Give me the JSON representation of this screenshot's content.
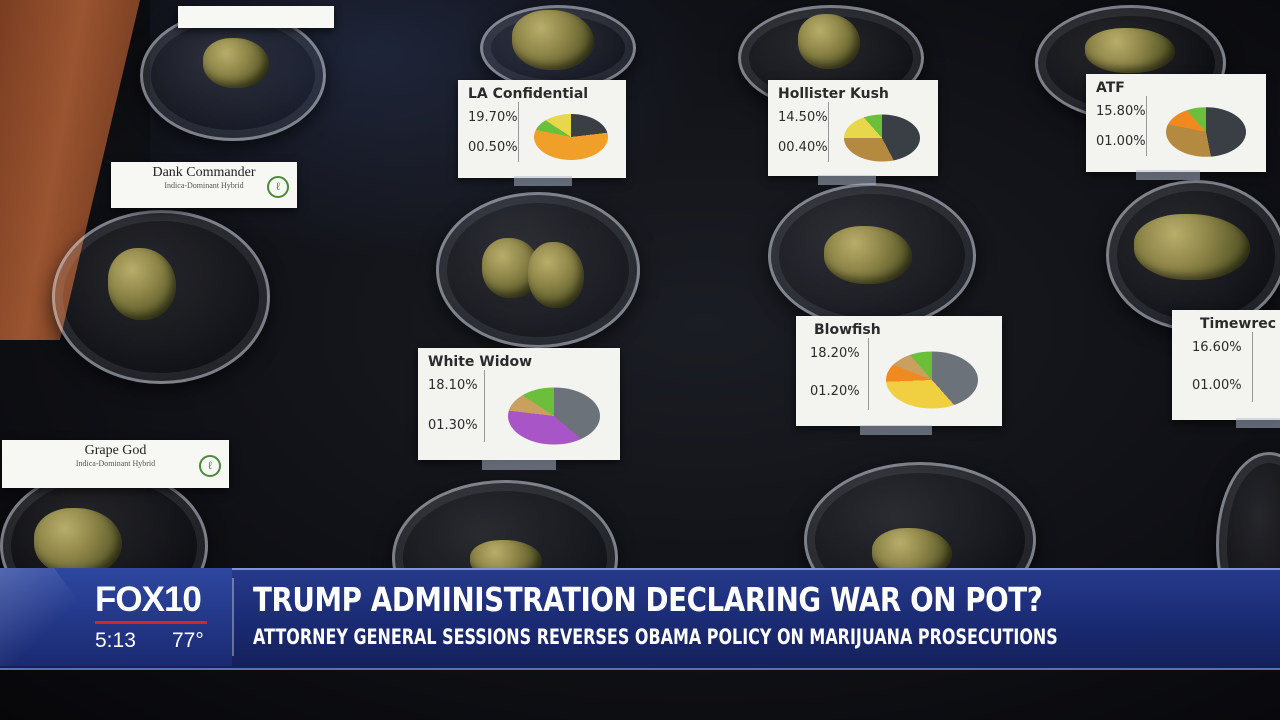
{
  "broadcast": {
    "station_logo": "FOX10",
    "time": "5:13",
    "temperature": "77°",
    "headline": "TRUMP ADMINISTRATION DECLARING WAR ON POT?",
    "subheadline": "ATTORNEY GENERAL SESSIONS REVERSES OBAMA POLICY ON MARIJUANA PROSECUTIONS",
    "colors": {
      "band": "#1c2d78",
      "accent": "#d8232a",
      "text": "#ffffff"
    }
  },
  "strain_cards": [
    {
      "name": "LA Confidential",
      "thc": "19.70%",
      "cbd": "00.50%"
    },
    {
      "name": "Hollister Kush",
      "thc": "14.50%",
      "cbd": "00.40%"
    },
    {
      "name": "ATF",
      "thc": "15.80%",
      "cbd": "01.00%"
    },
    {
      "name": "White Widow",
      "thc": "18.10%",
      "cbd": "01.30%"
    },
    {
      "name": "Blowfish",
      "thc": "18.20%",
      "cbd": "01.20%"
    },
    {
      "name": "Timewrec",
      "thc": "16.60%",
      "cbd": "01.00%"
    }
  ],
  "name_cards": [
    {
      "title": "Dank Commander",
      "subtitle": "Indica-Dominant Hybrid"
    },
    {
      "title": "Grape God",
      "subtitle": "Indica-Dominant Hybrid"
    }
  ]
}
